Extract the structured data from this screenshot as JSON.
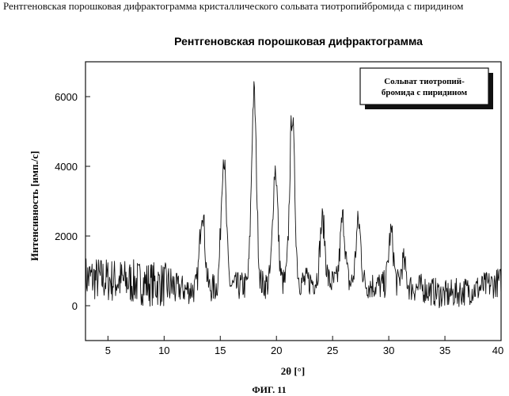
{
  "page": {
    "caption": "Рентгеновская порошковая дифрактограмма кристаллического сольвата тиотропийбромида с пиридином",
    "figure_label": "ФИГ. 11"
  },
  "chart_data": {
    "type": "line",
    "title": "Рентгеновская порошковая дифрактограмма",
    "xlabel": "2θ [°]",
    "ylabel": "Интенсивность [имп./с]",
    "xlim": [
      3,
      40
    ],
    "ylim": [
      -1000,
      7000
    ],
    "xticks": [
      5,
      10,
      15,
      20,
      25,
      30,
      35,
      40
    ],
    "xtick_labels": [
      "5",
      "10",
      "15",
      "20",
      "25",
      "30",
      "35",
      "40"
    ],
    "yticks": [
      0,
      2000,
      4000,
      6000
    ],
    "ytick_labels": [
      "0",
      "2000",
      "4000",
      "6000"
    ],
    "grid": false,
    "legend": {
      "position": "top-right",
      "lines": [
        "Сольват тиотропий-",
        "бромида с пиридином"
      ]
    },
    "series": [
      {
        "color": "#111111",
        "peaks": [
          {
            "x": 13.4,
            "y": 2800
          },
          {
            "x": 15.3,
            "y": 4300
          },
          {
            "x": 18.0,
            "y": 6100
          },
          {
            "x": 19.9,
            "y": 3950
          },
          {
            "x": 21.4,
            "y": 5500
          },
          {
            "x": 24.1,
            "y": 2450
          },
          {
            "x": 25.9,
            "y": 2500
          },
          {
            "x": 27.3,
            "y": 2400
          },
          {
            "x": 30.2,
            "y": 2100
          },
          {
            "x": 31.3,
            "y": 1250
          }
        ],
        "baseline": [
          {
            "x": 3,
            "y": 800
          },
          {
            "x": 10,
            "y": 600
          },
          {
            "x": 12,
            "y": 450
          },
          {
            "x": 23,
            "y": 700
          },
          {
            "x": 28,
            "y": 600
          },
          {
            "x": 33,
            "y": 500
          },
          {
            "x": 35,
            "y": 300
          },
          {
            "x": 38,
            "y": 500
          },
          {
            "x": 40,
            "y": 700
          }
        ]
      }
    ]
  }
}
